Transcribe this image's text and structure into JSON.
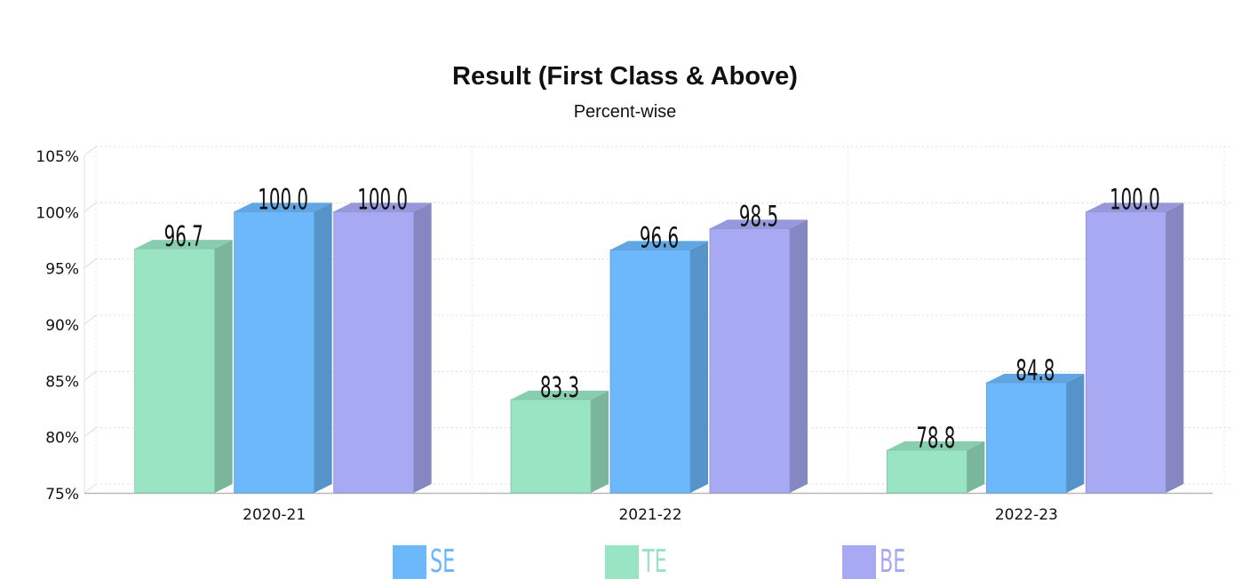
{
  "chart_data": {
    "type": "bar",
    "title": "Result (First Class & Above)",
    "subtitle": "Percent-wise",
    "categories": [
      "2020-21",
      "2021-22",
      "2022-23"
    ],
    "series": [
      {
        "name": "TE",
        "values": [
          96.7,
          83.3,
          78.8
        ],
        "color": "#98e4c3"
      },
      {
        "name": "SE",
        "values": [
          100.0,
          96.6,
          84.8
        ],
        "color": "#6cb8fb"
      },
      {
        "name": "BE",
        "values": [
          100.0,
          98.5,
          100.0
        ],
        "color": "#a7a9f3"
      }
    ],
    "y_ticks": [
      "75%",
      "80%",
      "85%",
      "90%",
      "95%",
      "100%",
      "105%"
    ],
    "ylim": [
      75,
      105
    ],
    "grid": true,
    "style": "3d",
    "legend_position": "bottom",
    "legend_order": [
      "SE",
      "TE",
      "BE"
    ]
  }
}
